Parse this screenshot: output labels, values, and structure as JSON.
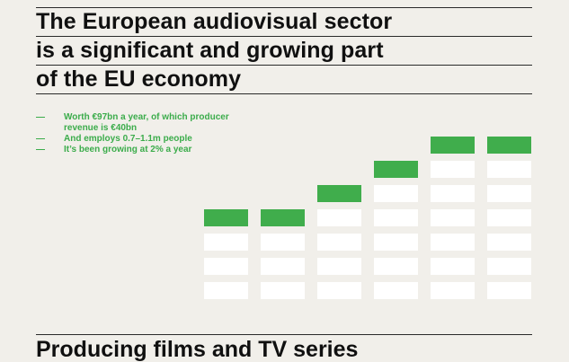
{
  "title_lines": [
    "The European audiovisual sector",
    "is a significant and growing part",
    "of the EU economy"
  ],
  "bullets": [
    {
      "dash": "—",
      "text": "Worth €97bn a year, of which producer\nrevenue is €40bn"
    },
    {
      "dash": "—",
      "text": "And employs 0.7–1.1m people"
    },
    {
      "dash": "—",
      "text": "It’s been growing at 2% a year"
    }
  ],
  "chart": {
    "white_blocks_per_column": [
      3,
      3,
      4,
      5,
      6,
      6
    ],
    "colors": {
      "green": "#40ad4c",
      "white": "#ffffff"
    }
  },
  "footer": {
    "text": "Producing films and TV series"
  }
}
